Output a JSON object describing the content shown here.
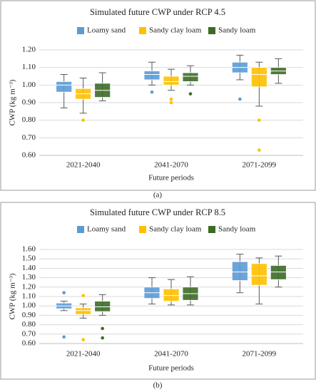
{
  "chart_data": [
    {
      "type": "box",
      "title": "Simulated future CWP under RCP 4.5",
      "caption": "(a)",
      "x_label": "Future periods",
      "y_label": "CWP (kg m⁻³)",
      "categories": [
        "2021-2040",
        "2041-2070",
        "2071-2099"
      ],
      "ylim": [
        0.6,
        1.2
      ],
      "yticks": [
        {
          "value": 0.6,
          "label": "0.60"
        },
        {
          "value": 0.7,
          "label": "0.70"
        },
        {
          "value": 0.8,
          "label": "0.80"
        },
        {
          "value": 0.9,
          "label": "0.90"
        },
        {
          "value": 1.0,
          "label": "1.00"
        },
        {
          "value": 1.1,
          "label": "1.10"
        },
        {
          "value": 1.2,
          "label": "1.20"
        }
      ],
      "grid": true,
      "legend": "top",
      "series": [
        {
          "name": "Loamy sand",
          "color": "#5b9bd5",
          "values": [
            {
              "min": 0.87,
              "q1": 0.96,
              "median": 1.0,
              "q3": 1.02,
              "max": 1.06,
              "outliers": []
            },
            {
              "min": 1.0,
              "q1": 1.03,
              "median": 1.06,
              "q3": 1.08,
              "max": 1.13,
              "outliers": [
                0.96
              ]
            },
            {
              "min": 1.03,
              "q1": 1.07,
              "median": 1.1,
              "q3": 1.13,
              "max": 1.17,
              "outliers": [
                0.92
              ]
            }
          ]
        },
        {
          "name": "Sandy clay loam",
          "color": "#ffc000",
          "values": [
            {
              "min": 0.84,
              "q1": 0.92,
              "median": 0.95,
              "q3": 0.98,
              "max": 1.04,
              "outliers": [
                0.8
              ]
            },
            {
              "min": 0.97,
              "q1": 1.0,
              "median": 1.02,
              "q3": 1.05,
              "max": 1.09,
              "outliers": [
                0.9,
                0.92
              ]
            },
            {
              "min": 0.88,
              "q1": 0.99,
              "median": 1.06,
              "q3": 1.1,
              "max": 1.13,
              "outliers": [
                0.8,
                0.63
              ]
            }
          ]
        },
        {
          "name": "Sandy loam",
          "color": "#3d6b26",
          "values": [
            {
              "min": 0.91,
              "q1": 0.93,
              "median": 0.97,
              "q3": 1.01,
              "max": 1.07,
              "outliers": []
            },
            {
              "min": 1.0,
              "q1": 1.02,
              "median": 1.05,
              "q3": 1.07,
              "max": 1.11,
              "outliers": [
                0.95
              ]
            },
            {
              "min": 1.01,
              "q1": 1.06,
              "median": 1.08,
              "q3": 1.1,
              "max": 1.15,
              "outliers": []
            }
          ]
        }
      ]
    },
    {
      "type": "box",
      "title": "Simulated future CWP under RCP 8.5",
      "caption": "(b)",
      "x_label": "Future periods",
      "y_label": "CWP (kg m⁻³)",
      "categories": [
        "2021-2040",
        "2041-2070",
        "2071-2099"
      ],
      "ylim": [
        0.6,
        1.6
      ],
      "yticks": [
        {
          "value": 0.6,
          "label": "0.60"
        },
        {
          "value": 0.7,
          "label": "0.70"
        },
        {
          "value": 0.8,
          "label": "0.80"
        },
        {
          "value": 0.9,
          "label": "0.90"
        },
        {
          "value": 1.0,
          "label": "1.00"
        },
        {
          "value": 1.1,
          "label": "1.10"
        },
        {
          "value": 1.2,
          "label": "1.20"
        },
        {
          "value": 1.3,
          "label": "1.30"
        },
        {
          "value": 1.4,
          "label": "1.40"
        },
        {
          "value": 1.5,
          "label": "1.50"
        },
        {
          "value": 1.6,
          "label": "1.60"
        }
      ],
      "grid": true,
      "legend": "top",
      "series": [
        {
          "name": "Loamy sand",
          "color": "#5b9bd5",
          "values": [
            {
              "min": 0.95,
              "q1": 0.97,
              "median": 1.0,
              "q3": 1.03,
              "max": 1.05,
              "outliers": [
                1.14,
                0.67
              ]
            },
            {
              "min": 1.02,
              "q1": 1.08,
              "median": 1.14,
              "q3": 1.2,
              "max": 1.3,
              "outliers": []
            },
            {
              "min": 1.14,
              "q1": 1.27,
              "median": 1.36,
              "q3": 1.47,
              "max": 1.55,
              "outliers": []
            }
          ]
        },
        {
          "name": "Sandy clay loam",
          "color": "#ffc000",
          "values": [
            {
              "min": 0.87,
              "q1": 0.91,
              "median": 0.95,
              "q3": 0.98,
              "max": 1.02,
              "outliers": [
                1.11,
                0.64
              ]
            },
            {
              "min": 1.01,
              "q1": 1.05,
              "median": 1.11,
              "q3": 1.18,
              "max": 1.28,
              "outliers": []
            },
            {
              "min": 1.02,
              "q1": 1.22,
              "median": 1.32,
              "q3": 1.45,
              "max": 1.51,
              "outliers": []
            }
          ]
        },
        {
          "name": "Sandy loam",
          "color": "#3d6b26",
          "values": [
            {
              "min": 0.9,
              "q1": 0.94,
              "median": 0.99,
              "q3": 1.05,
              "max": 1.12,
              "outliers": [
                0.76,
                0.66
              ]
            },
            {
              "min": 1.01,
              "q1": 1.06,
              "median": 1.13,
              "q3": 1.2,
              "max": 1.31,
              "outliers": []
            },
            {
              "min": 1.2,
              "q1": 1.28,
              "median": 1.36,
              "q3": 1.43,
              "max": 1.53,
              "outliers": []
            }
          ]
        }
      ]
    }
  ]
}
